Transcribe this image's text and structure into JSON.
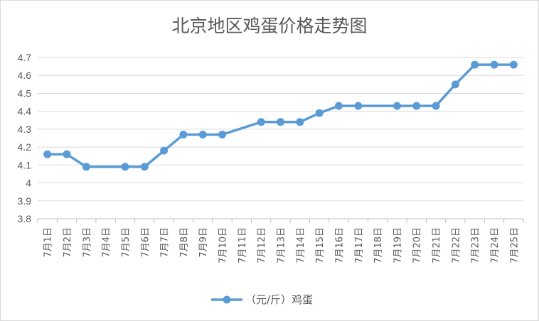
{
  "chart_data": {
    "type": "line",
    "title": "北京地区鸡蛋价格走势图",
    "categories": [
      "7月1日",
      "7月2日",
      "7月3日",
      "7月4日",
      "7月5日",
      "7月6日",
      "7月7日",
      "7月8日",
      "7月9日",
      "7月10日",
      "7月11日",
      "7月12日",
      "7月13日",
      "7月14日",
      "7月15日",
      "7月16日",
      "7月17日",
      "7月18日",
      "7月19日",
      "7月20日",
      "7月21日",
      "7月22日",
      "7月23日",
      "7月24日",
      "7月25日"
    ],
    "series": [
      {
        "name": "（元/斤）鸡蛋",
        "color": "#5b9bd5",
        "values": [
          4.16,
          4.16,
          4.09,
          null,
          4.09,
          4.09,
          4.18,
          4.27,
          4.27,
          4.27,
          null,
          4.34,
          4.34,
          4.34,
          4.39,
          4.43,
          4.43,
          null,
          4.43,
          4.43,
          4.43,
          4.55,
          4.66,
          4.66,
          4.66
        ]
      }
    ],
    "yticks": [
      "3.8",
      "3.9",
      "4",
      "4.1",
      "4.2",
      "4.3",
      "4.4",
      "4.5",
      "4.6",
      "4.7"
    ],
    "ylim": [
      3.8,
      4.7
    ],
    "grid": true,
    "legend_position": "bottom"
  }
}
